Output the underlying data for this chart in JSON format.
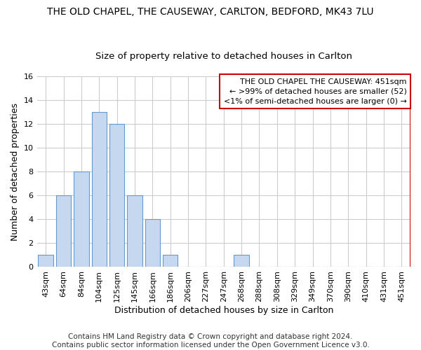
{
  "title_line1": "THE OLD CHAPEL, THE CAUSEWAY, CARLTON, BEDFORD, MK43 7LU",
  "title_line2": "Size of property relative to detached houses in Carlton",
  "xlabel": "Distribution of detached houses by size in Carlton",
  "ylabel": "Number of detached properties",
  "bar_labels": [
    "43sqm",
    "64sqm",
    "84sqm",
    "104sqm",
    "125sqm",
    "145sqm",
    "166sqm",
    "186sqm",
    "206sqm",
    "227sqm",
    "247sqm",
    "268sqm",
    "288sqm",
    "308sqm",
    "329sqm",
    "349sqm",
    "370sqm",
    "390sqm",
    "410sqm",
    "431sqm",
    "451sqm"
  ],
  "bar_values": [
    1,
    6,
    8,
    13,
    12,
    6,
    4,
    1,
    0,
    0,
    0,
    1,
    0,
    0,
    0,
    0,
    0,
    0,
    0,
    0,
    0
  ],
  "bar_color_normal": "#c5d8f0",
  "bar_edge_color": "#6699cc",
  "highlight_index": -1,
  "red_line_x_label": "451sqm",
  "ylim": [
    0,
    16
  ],
  "yticks": [
    0,
    2,
    4,
    6,
    8,
    10,
    12,
    14,
    16
  ],
  "legend_box_text_line1": "THE OLD CHAPEL THE CAUSEWAY: 451sqm",
  "legend_box_text_line2": "← >99% of detached houses are smaller (52)",
  "legend_box_text_line3": "<1% of semi-detached houses are larger (0) →",
  "legend_box_color": "#ffffff",
  "legend_box_edge_color": "#cc0000",
  "footer_text": "Contains HM Land Registry data © Crown copyright and database right 2024.\nContains public sector information licensed under the Open Government Licence v3.0.",
  "background_color": "#ffffff",
  "plot_background_color": "#ffffff",
  "grid_color": "#cccccc",
  "title_fontsize": 10,
  "subtitle_fontsize": 9.5,
  "axis_label_fontsize": 9,
  "tick_fontsize": 8,
  "footer_fontsize": 7.5
}
